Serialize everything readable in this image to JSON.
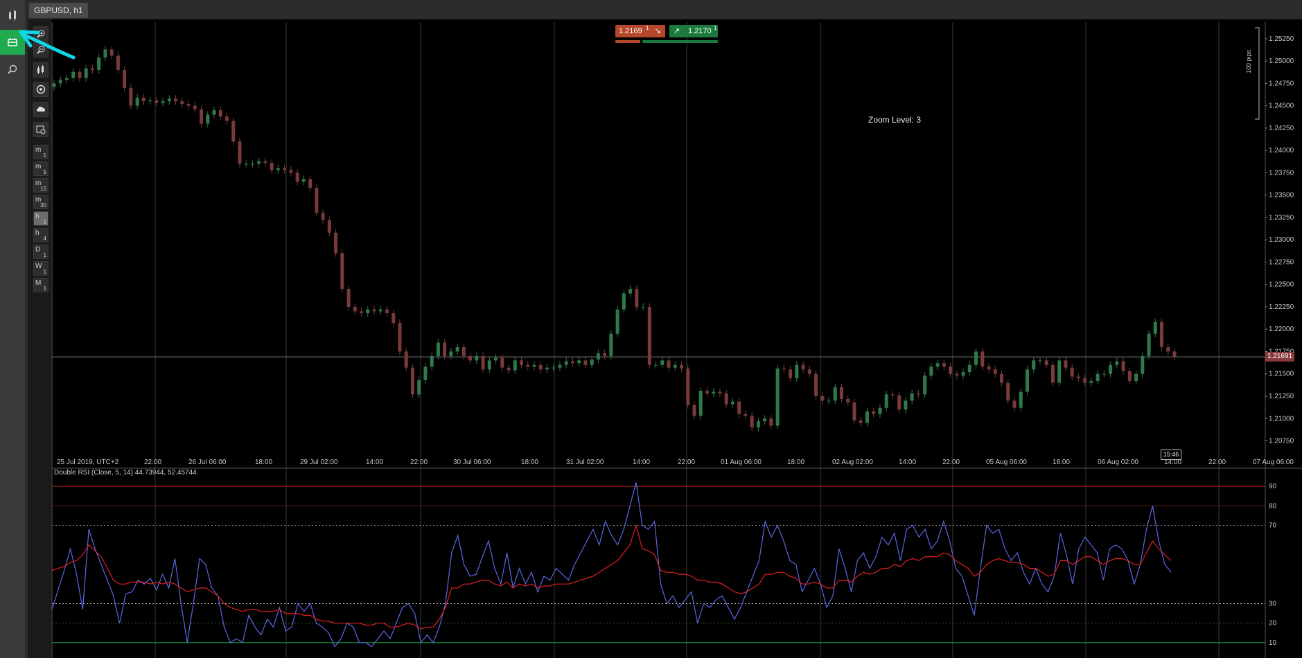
{
  "tab": {
    "title": "GBPUSD, h1"
  },
  "left_rail": {
    "items": [
      {
        "name": "trade-icon",
        "active": false
      },
      {
        "name": "chart-icon",
        "active": true
      },
      {
        "name": "search-chart-icon",
        "active": false
      }
    ]
  },
  "toolbar": {
    "icons": [
      "zoom-in-icon",
      "zoom-out-icon",
      "chart-type-icon",
      "color-scheme-icon",
      "cloud-icon",
      "settings-icon"
    ],
    "timeframes": [
      {
        "top": "m",
        "bottom": "1",
        "selected": false
      },
      {
        "top": "m",
        "bottom": "5",
        "selected": false
      },
      {
        "top": "m",
        "bottom": "15",
        "selected": false
      },
      {
        "top": "m",
        "bottom": "30",
        "selected": false
      },
      {
        "top": "h",
        "bottom": "1",
        "selected": true
      },
      {
        "top": "h",
        "bottom": "4",
        "selected": false
      },
      {
        "top": "D",
        "bottom": "1",
        "selected": false
      },
      {
        "top": "W",
        "bottom": "1",
        "selected": false
      },
      {
        "top": "M",
        "bottom": "1",
        "selected": false
      }
    ]
  },
  "quote": {
    "sell_price": "1.2169",
    "sell_sup": "1",
    "buy_price": "1.2170",
    "buy_sup": "1"
  },
  "zoom_text": "Zoom Level: 3",
  "current_price": "1.21691",
  "pips_label": "100 pips",
  "time_badge": "15:46",
  "price_axis": [
    {
      "label": "1.2525",
      "sup": "0"
    },
    {
      "label": "1.2500",
      "sup": "0"
    },
    {
      "label": "1.2475",
      "sup": "0"
    },
    {
      "label": "1.2450",
      "sup": "0"
    },
    {
      "label": "1.2425",
      "sup": "0"
    },
    {
      "label": "1.2400",
      "sup": "0"
    },
    {
      "label": "1.2375",
      "sup": "0"
    },
    {
      "label": "1.2350",
      "sup": "0"
    },
    {
      "label": "1.2325",
      "sup": "0"
    },
    {
      "label": "1.2300",
      "sup": "0"
    },
    {
      "label": "1.2275",
      "sup": "0"
    },
    {
      "label": "1.2250",
      "sup": "0"
    },
    {
      "label": "1.2225",
      "sup": "0"
    },
    {
      "label": "1.2200",
      "sup": "0"
    },
    {
      "label": "1.2175",
      "sup": "0"
    },
    {
      "label": "1.2150",
      "sup": "0"
    },
    {
      "label": "1.2125",
      "sup": "0"
    },
    {
      "label": "1.2100",
      "sup": "0"
    },
    {
      "label": "1.2075",
      "sup": "0"
    }
  ],
  "time_axis": [
    "25 Jul 2019, UTC+2",
    "22:00",
    "26 Jul 06:00",
    "18:00",
    "29 Jul 02:00",
    "14:00",
    "22:00",
    "30 Jul 06:00",
    "18:00",
    "31 Jul 02:00",
    "14:00",
    "22:00",
    "01 Aug 06:00",
    "18:00",
    "02 Aug 02:00",
    "14:00",
    "22:00",
    "05 Aug 06:00",
    "18:00",
    "06 Aug 02:00",
    "14:00",
    "22:00",
    "07 Aug 06:00"
  ],
  "rsi": {
    "label": "Double RSI (Close, 5, 14) 44.73944, 52.45744",
    "levels": [
      "90",
      "80",
      "70",
      "30",
      "20",
      "10"
    ],
    "line_colors": {
      "fast": "#5a68e6",
      "slow": "#e02020"
    }
  },
  "colors": {
    "bull": "#2f7a4a",
    "bear": "#7a3a3a",
    "accent": "#1faa4f",
    "grid": "#3a3a3a",
    "arrow": "#10d5e8"
  },
  "chart_data": [
    {
      "type": "candlestick",
      "title": "GBPUSD, h1",
      "xlabel": "",
      "ylabel": "",
      "ylim": [
        1.2063,
        1.2535
      ],
      "close": [
        1.2475,
        1.2479,
        1.2481,
        1.2488,
        1.2481,
        1.2492,
        1.249,
        1.2504,
        1.2513,
        1.2506,
        1.249,
        1.247,
        1.245,
        1.2459,
        1.2455,
        1.2456,
        1.2453,
        1.2455,
        1.2458,
        1.2455,
        1.2452,
        1.245,
        1.2446,
        1.243,
        1.244,
        1.2445,
        1.2438,
        1.2433,
        1.241,
        1.2385,
        1.2385,
        1.2385,
        1.2388,
        1.2386,
        1.2378,
        1.238,
        1.2378,
        1.2375,
        1.2365,
        1.2368,
        1.2358,
        1.233,
        1.2322,
        1.2308,
        1.2285,
        1.2245,
        1.2225,
        1.222,
        1.2218,
        1.2222,
        1.222,
        1.2222,
        1.2218,
        1.2207,
        1.2175,
        1.2157,
        1.2127,
        1.2143,
        1.2158,
        1.217,
        1.2185,
        1.217,
        1.2175,
        1.218,
        1.217,
        1.2165,
        1.217,
        1.2155,
        1.2165,
        1.2168,
        1.2157,
        1.2154,
        1.2165,
        1.216,
        1.2158,
        1.216,
        1.2155,
        1.2157,
        1.2157,
        1.216,
        1.2164,
        1.2162,
        1.2165,
        1.216,
        1.2166,
        1.2173,
        1.217,
        1.2195,
        1.2222,
        1.224,
        1.2245,
        1.2225,
        1.2225,
        1.216,
        1.216,
        1.2165,
        1.2157,
        1.216,
        1.2156,
        1.2115,
        1.2103,
        1.2131,
        1.2128,
        1.213,
        1.2128,
        1.2116,
        1.2119,
        1.2105,
        1.2103,
        1.209,
        1.2097,
        1.21,
        1.2092,
        1.2156,
        1.2155,
        1.2145,
        1.216,
        1.2155,
        1.215,
        1.2125,
        1.212,
        1.212,
        1.2135,
        1.2122,
        1.2118,
        1.2098,
        1.2095,
        1.2108,
        1.2105,
        1.2112,
        1.2127,
        1.2126,
        1.211,
        1.212,
        1.2128,
        1.2127,
        1.2148,
        1.2158,
        1.2162,
        1.2158,
        1.215,
        1.2148,
        1.2152,
        1.216,
        1.2175,
        1.2158,
        1.2155,
        1.215,
        1.214,
        1.212,
        1.2112,
        1.213,
        1.2155,
        1.2165,
        1.2165,
        1.216,
        1.214,
        1.2165,
        1.2157,
        1.2147,
        1.2145,
        1.214,
        1.2142,
        1.215,
        1.215,
        1.216,
        1.2164,
        1.2153,
        1.2142,
        1.215,
        1.217,
        1.2195,
        1.2208,
        1.218,
        1.2175,
        1.2169
      ]
    },
    {
      "type": "line",
      "title": "Double RSI (Close, 5, 14)",
      "ylim": [
        5,
        95
      ],
      "yticks": [
        90,
        80,
        70,
        30,
        20,
        10
      ],
      "series": [
        {
          "name": "fast",
          "values": [
            27,
            37,
            47,
            58,
            45,
            27,
            68,
            58,
            50,
            42,
            34,
            20,
            35,
            36,
            42,
            40,
            43,
            37,
            45,
            38,
            53,
            30,
            10,
            30,
            53,
            50,
            38,
            34,
            18,
            10,
            12,
            10,
            24,
            18,
            14,
            22,
            18,
            28,
            16,
            18,
            30,
            26,
            30,
            20,
            18,
            15,
            8,
            12,
            20,
            18,
            10,
            10,
            8,
            12,
            16,
            12,
            20,
            28,
            30,
            25,
            10,
            14,
            10,
            18,
            30,
            56,
            65,
            50,
            44,
            45,
            54,
            62,
            48,
            40,
            56,
            38,
            48,
            40,
            46,
            36,
            44,
            42,
            48,
            45,
            42,
            50,
            56,
            62,
            68,
            60,
            72,
            65,
            60,
            68,
            80,
            92,
            70,
            68,
            72,
            40,
            30,
            34,
            28,
            32,
            36,
            20,
            30,
            28,
            32,
            34,
            28,
            22,
            28,
            36,
            44,
            52,
            72,
            64,
            70,
            62,
            52,
            50,
            36,
            42,
            48,
            40,
            28,
            34,
            58,
            48,
            36,
            52,
            56,
            48,
            54,
            64,
            60,
            66,
            52,
            68,
            70,
            64,
            68,
            58,
            62,
            72,
            62,
            48,
            44,
            34,
            24,
            48,
            70,
            66,
            68,
            58,
            52,
            56,
            46,
            40,
            48,
            40,
            36,
            44,
            66,
            55,
            40,
            58,
            64,
            60,
            56,
            42,
            58,
            60,
            58,
            52,
            40,
            50,
            68,
            80,
            62,
            50,
            46
          ]
        },
        {
          "name": "slow",
          "values": [
            47,
            48,
            49,
            51,
            52,
            55,
            60,
            57,
            54,
            48,
            42,
            40,
            40,
            41,
            41,
            41,
            40,
            41,
            40,
            41,
            40,
            38,
            36,
            37,
            38,
            38,
            36,
            34,
            30,
            28,
            27,
            26,
            27,
            27,
            26,
            26,
            26,
            27,
            25,
            25,
            25,
            24,
            24,
            22,
            21,
            21,
            20,
            20,
            20,
            20,
            20,
            19,
            19,
            20,
            20,
            18,
            18,
            19,
            20,
            19,
            17,
            18,
            18,
            22,
            28,
            38,
            38,
            40,
            40,
            41,
            42,
            42,
            40,
            39,
            41,
            38,
            40,
            39,
            40,
            38,
            39,
            39,
            40,
            40,
            40,
            41,
            42,
            43,
            44,
            46,
            48,
            50,
            52,
            56,
            60,
            70,
            58,
            57,
            55,
            47,
            46,
            46,
            45,
            45,
            44,
            42,
            42,
            41,
            41,
            40,
            38,
            36,
            35,
            36,
            38,
            40,
            45,
            45,
            46,
            46,
            44,
            43,
            40,
            40,
            41,
            40,
            38,
            38,
            42,
            42,
            41,
            44,
            46,
            45,
            46,
            48,
            48,
            50,
            49,
            52,
            53,
            52,
            54,
            54,
            54,
            56,
            55,
            52,
            50,
            48,
            44,
            46,
            50,
            52,
            53,
            52,
            51,
            51,
            50,
            48,
            48,
            46,
            44,
            45,
            52,
            52,
            50,
            52,
            54,
            54,
            52,
            50,
            52,
            53,
            53,
            52,
            50,
            50,
            56,
            62,
            58,
            55,
            52
          ]
        }
      ]
    }
  ]
}
